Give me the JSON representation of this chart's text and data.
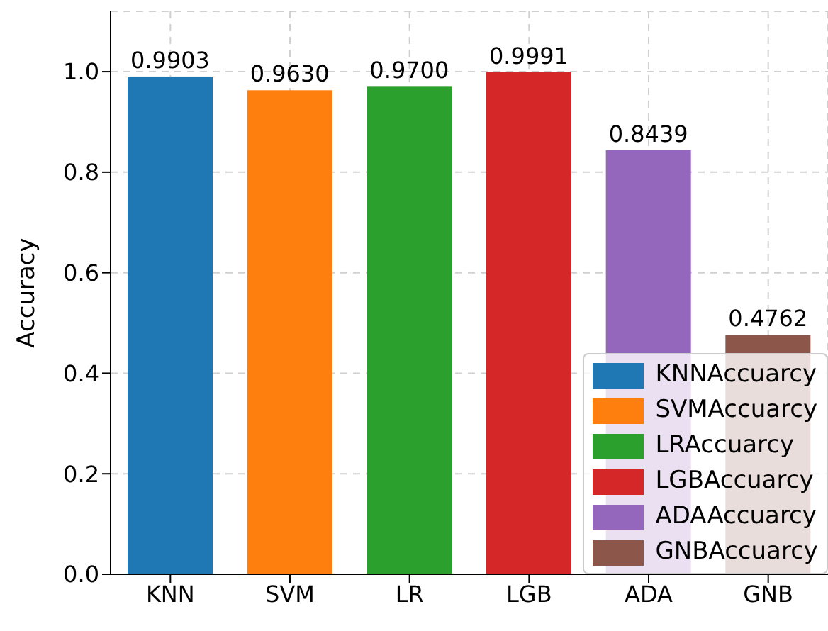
{
  "chart_data": {
    "type": "bar",
    "ylabel": "Accuracy",
    "categories": [
      "KNN",
      "SVM",
      "LR",
      "LGB",
      "ADA",
      "GNB"
    ],
    "series": [
      {
        "name": "KNNAccuarcy",
        "color": "#1f77b4",
        "values": [
          0.9903,
          null,
          null,
          null,
          null,
          null
        ],
        "value_labels": [
          "0.9903",
          null,
          null,
          null,
          null,
          null
        ]
      },
      {
        "name": "SVMAccuarcy",
        "color": "#ff7f0e",
        "values": [
          null,
          0.963,
          null,
          null,
          null,
          null
        ],
        "value_labels": [
          null,
          "0.9630",
          null,
          null,
          null,
          null
        ]
      },
      {
        "name": "LRAccuarcy",
        "color": "#2ca02c",
        "values": [
          null,
          null,
          0.97,
          null,
          null,
          null
        ],
        "value_labels": [
          null,
          null,
          "0.9700",
          null,
          null,
          null
        ]
      },
      {
        "name": "LGBAccuarcy",
        "color": "#d62728",
        "values": [
          null,
          null,
          null,
          0.9991,
          null,
          null
        ],
        "value_labels": [
          null,
          null,
          null,
          "0.9991",
          null,
          null
        ]
      },
      {
        "name": "ADAAccuarcy",
        "color": "#9467bd",
        "values": [
          null,
          null,
          null,
          null,
          0.8439,
          null
        ],
        "value_labels": [
          null,
          null,
          null,
          null,
          "0.8439",
          null
        ]
      },
      {
        "name": "GNBAccuarcy",
        "color": "#8c564b",
        "values": [
          null,
          null,
          null,
          null,
          null,
          0.4762
        ],
        "value_labels": [
          null,
          null,
          null,
          null,
          null,
          "0.4762"
        ]
      }
    ],
    "ylim": [
      0,
      1.12
    ],
    "yticks": [
      {
        "value": 0,
        "label": "0.0"
      },
      {
        "value": 0.2,
        "label": "0.2"
      },
      {
        "value": 0.4,
        "label": "0.4"
      },
      {
        "value": 0.6,
        "label": "0.6"
      },
      {
        "value": 0.8,
        "label": "0.8"
      },
      {
        "value": 1,
        "label": "1.0"
      }
    ],
    "grid": true,
    "legend": "bottom right"
  }
}
